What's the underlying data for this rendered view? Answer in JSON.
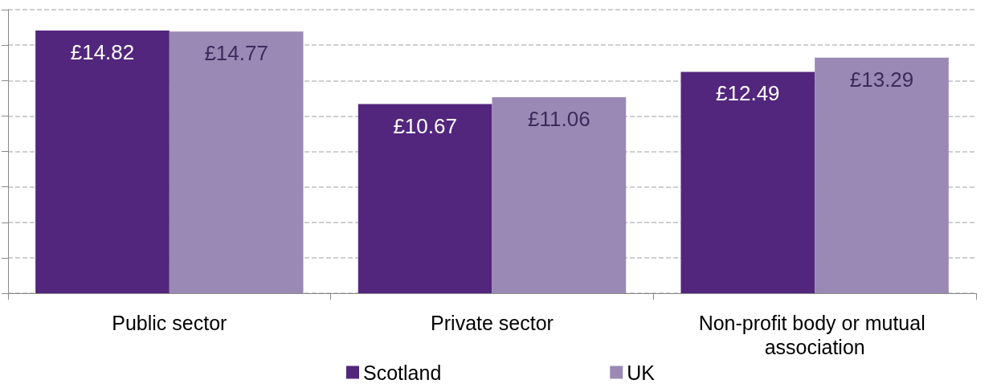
{
  "chart_data": {
    "type": "bar",
    "categories": [
      "Public sector",
      "Private sector",
      "Non-profit body or mutual association"
    ],
    "series": [
      {
        "name": "Scotland",
        "color": "#52267d",
        "values": [
          14.82,
          10.67,
          12.49
        ],
        "value_labels": [
          "£14.82",
          "£10.67",
          "£12.49"
        ]
      },
      {
        "name": "UK",
        "color": "#9a89b5",
        "values": [
          14.77,
          11.06,
          13.29
        ],
        "value_labels": [
          "£14.77",
          "£11.06",
          "£13.29"
        ]
      }
    ],
    "ylim": [
      0,
      16
    ],
    "yticks": [
      {
        "value": 0,
        "label": null
      },
      {
        "value": 2,
        "label": null
      },
      {
        "value": 4,
        "label": null
      },
      {
        "value": 6,
        "label": null
      },
      {
        "value": 8,
        "label": null
      },
      {
        "value": 10,
        "label": null
      },
      {
        "value": 12,
        "label": null
      },
      {
        "value": 14,
        "label": null
      },
      {
        "value": 16,
        "label": null
      }
    ],
    "grid": "y",
    "legend": "bottom",
    "tick_labels": "x"
  }
}
